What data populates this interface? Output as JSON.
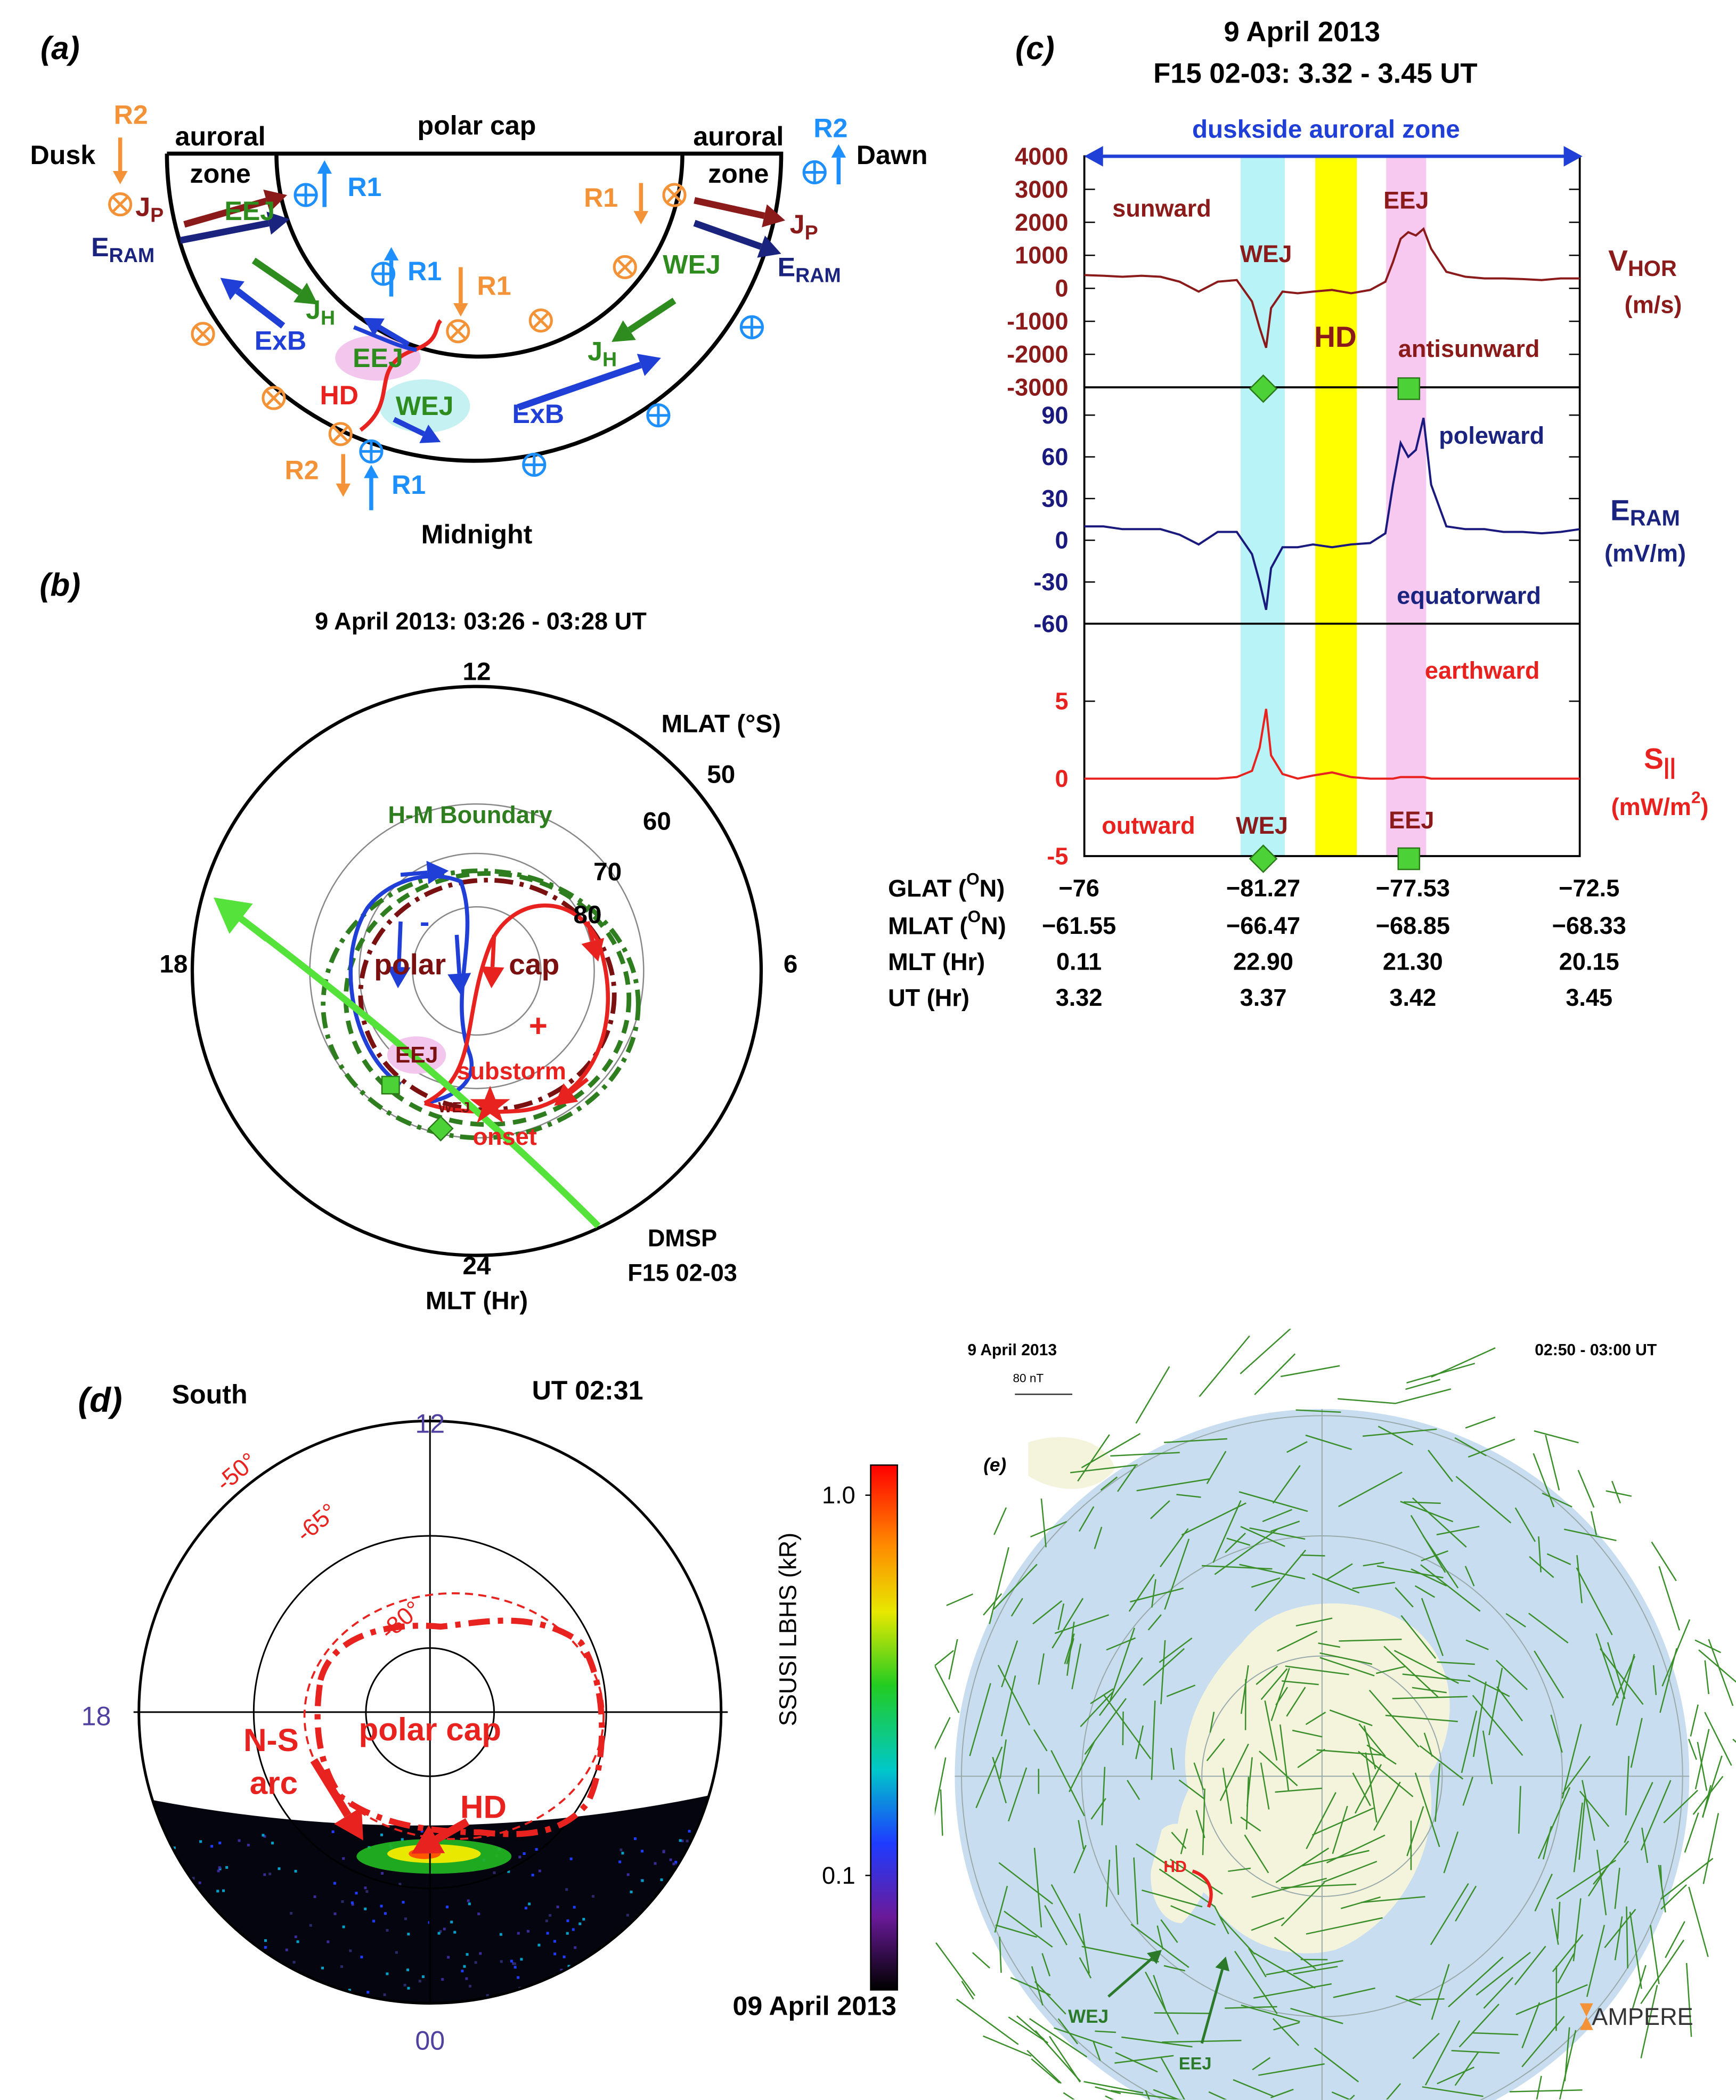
{
  "panel_a": {
    "label": "(a)",
    "polar_cap": "polar cap",
    "auroral_left": [
      "auroral",
      "zone"
    ],
    "auroral_right": [
      "auroral",
      "zone"
    ],
    "dusk": "Dusk",
    "dawn": "Dawn",
    "midnight": "Midnight",
    "currents": [
      "R2",
      "R2",
      "R1",
      "R1",
      "R1",
      "R1",
      "R2",
      "R1"
    ],
    "jp": [
      {
        "main": "J",
        "sub": "P"
      },
      {
        "main": "J",
        "sub": "P"
      }
    ],
    "eram": [
      {
        "main": "E",
        "sub": "RAM"
      },
      {
        "main": "E",
        "sub": "RAM"
      }
    ],
    "jets": [
      "EEJ",
      "WEJ",
      "EEJ",
      "WEJ"
    ],
    "jh": [
      {
        "main": "J",
        "sub": "H"
      },
      {
        "main": "J",
        "sub": "H"
      }
    ],
    "exb": [
      "ExB",
      "ExB"
    ],
    "hd": "HD"
  },
  "panel_b": {
    "label": "(b)",
    "title": "9 April 2013: 03:26 - 03:28 UT",
    "mlt_labels": [
      "12",
      "18",
      "6",
      "24"
    ],
    "mlat_label": "MLAT (°S)",
    "mlat_ticks": [
      "50",
      "60",
      "70",
      "80"
    ],
    "boundary": "H-M Boundary",
    "polar": "polar",
    "cap": "cap",
    "minus": "-",
    "plus": "+",
    "eej": "EEJ",
    "wej": "WEJ",
    "substorm": "substorm",
    "onset": "onset",
    "dmsp": [
      "DMSP",
      "F15 02-03"
    ],
    "mlt_title": "MLT (Hr)"
  },
  "chart_data": {
    "type": "line",
    "label": "(c)",
    "title": [
      "9 April 2013",
      "F15 02-03: 3.32 - 3.45 UT"
    ],
    "span_label": "duskside auroral zone",
    "xlim": [
      3.32,
      3.45
    ],
    "x": [
      3.32,
      3.325,
      3.33,
      3.335,
      3.34,
      3.345,
      3.35,
      3.355,
      3.36,
      3.364,
      3.366,
      3.3677,
      3.369,
      3.372,
      3.376,
      3.38,
      3.385,
      3.39,
      3.395,
      3.399,
      3.401,
      3.403,
      3.405,
      3.407,
      3.409,
      3.411,
      3.415,
      3.42,
      3.425,
      3.43,
      3.435,
      3.44,
      3.445,
      3.45
    ],
    "bands": [
      {
        "x": [
          3.361,
          3.3726
        ],
        "color": "#b8f3f7"
      },
      {
        "x": [
          3.3806,
          3.3915
        ],
        "color": "#ffff00"
      },
      {
        "x": [
          3.3992,
          3.4097
        ],
        "color": "#f7c9f0"
      }
    ],
    "subplots": [
      {
        "color": "#8b1a1a",
        "ylim": [
          -3000,
          4000
        ],
        "yticks": [
          4000,
          3000,
          2000,
          1000,
          0,
          -1000,
          -2000,
          -3000
        ],
        "ylabel": {
          "main": "V",
          "sub": "HOR"
        },
        "yunit": [
          "(m/s)"
        ],
        "annotations": [
          "sunward",
          "WEJ",
          "EEJ",
          "HD",
          "antisunward"
        ],
        "values": [
          400,
          380,
          350,
          380,
          350,
          200,
          -100,
          200,
          250,
          -400,
          -1200,
          -1800,
          -600,
          -100,
          -150,
          -100,
          -50,
          -150,
          -50,
          200,
          800,
          1500,
          1700,
          1600,
          1800,
          1200,
          500,
          350,
          300,
          300,
          280,
          250,
          300,
          300
        ]
      },
      {
        "color": "#1a1a7e",
        "ylim": [
          -60,
          110
        ],
        "yticks": [
          90,
          60,
          30,
          0,
          -30,
          -60
        ],
        "ylabel": {
          "main": "E",
          "sub": "RAM"
        },
        "yunit": [
          "(mV/m)"
        ],
        "annotations": [
          "poleward",
          "equatorward"
        ],
        "values": [
          10,
          10,
          8,
          8,
          8,
          4,
          -3,
          6,
          6,
          -10,
          -30,
          -50,
          -20,
          -5,
          -5,
          -3,
          -5,
          -3,
          -2,
          5,
          40,
          70,
          60,
          65,
          88,
          40,
          10,
          8,
          8,
          6,
          6,
          5,
          6,
          8
        ]
      },
      {
        "color": "#e8231f",
        "ylim": [
          -5,
          10
        ],
        "yticks": [
          5,
          0,
          -5
        ],
        "ylabel": {
          "main": "S",
          "sub": "||"
        },
        "yunit": [
          "(mW/m",
          "2",
          ")"
        ],
        "annotations": [
          "earthward",
          "outward",
          "WEJ",
          "EEJ"
        ],
        "values": [
          0,
          0,
          0,
          0,
          0,
          0,
          0,
          0,
          0.1,
          0.5,
          2,
          4.5,
          1.5,
          0.3,
          0,
          0.2,
          0.4,
          0.1,
          0,
          0,
          0,
          0.1,
          0.1,
          0.1,
          0.1,
          0,
          0,
          0,
          0,
          0,
          0,
          0,
          0,
          0
        ]
      }
    ],
    "table": {
      "rows": [
        {
          "label": [
            "GLAT (",
            "O",
            "N)"
          ],
          "cells": [
            "−76",
            "−81.27",
            "−77.53",
            "−72.5"
          ]
        },
        {
          "label": [
            "MLAT (",
            "O",
            "N)"
          ],
          "cells": [
            "−61.55",
            "−66.47",
            "−68.85",
            "−68.33"
          ]
        },
        {
          "label": [
            "MLT (Hr)"
          ],
          "cells": [
            "0.11",
            "22.90",
            "21.30",
            "20.15"
          ]
        },
        {
          "label": [
            "UT (Hr)"
          ],
          "cells": [
            "3.32",
            "3.37",
            "3.42",
            "3.45"
          ]
        }
      ]
    }
  },
  "panel_d": {
    "label": "(d)",
    "hemisphere": "South",
    "time": "UT 02:31",
    "mlt_labels": [
      "12",
      "18",
      "00"
    ],
    "lat_labels": [
      "-50°",
      "-65°",
      "-80°"
    ],
    "ns_arc": [
      "N-S",
      "arc"
    ],
    "polar_cap": "polar cap",
    "hd": "HD",
    "date": "09 April 2013",
    "colorbar": {
      "label": "SSUSI LBHS  (kR)",
      "lim": [
        0.05,
        1.2
      ],
      "log": true,
      "ticks": [
        {
          "value": 1,
          "label": "1.0"
        },
        0.1
      ]
    }
  },
  "panel_e": {
    "date": "9 April 2013",
    "time": "02:50  -  03:00  UT",
    "scale": "80 nT",
    "label": "(e)",
    "hd": "HD",
    "wej": "WEJ",
    "eej": "EEJ",
    "logo": "AMPERE"
  }
}
